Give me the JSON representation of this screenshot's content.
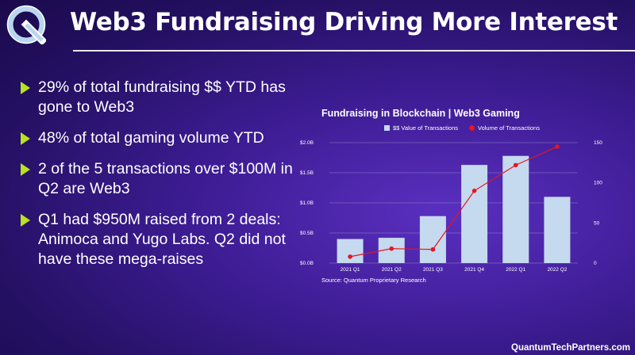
{
  "slide": {
    "title": "Web3 Fundraising Driving More Interest",
    "footer": "QuantumTechPartners.com",
    "bullets": [
      "29% of total fundraising $$ YTD has gone to Web3",
      "48% of total gaming volume YTD",
      "2 of the 5 transactions over $100M in Q2 are Web3",
      "Q1 had $950M raised from 2 deals: Animoca and Yugo Labs. Q2 did not have these mega-raises"
    ],
    "colors": {
      "accent": "#b9e21f",
      "bar": "#c5d9ef",
      "line": "#e8141e",
      "background": "#3d1c93"
    },
    "logo_icon": "q-logo-icon"
  },
  "chart_data": {
    "type": "bar",
    "title": "Fundraising in Blockchain | Web3 Gaming",
    "source": "Source: Quantum Proprietary Research",
    "categories": [
      "2021 Q1",
      "2021 Q2",
      "2021 Q3",
      "2021 Q4",
      "2022 Q1",
      "2022 Q2"
    ],
    "series": [
      {
        "name": "$$ Value of Transactions",
        "type": "bar",
        "axis": "left",
        "values": [
          0.4,
          0.42,
          0.78,
          1.63,
          1.78,
          1.1
        ]
      },
      {
        "name": "Volume of Transactions",
        "type": "line",
        "axis": "right",
        "values": [
          8,
          18,
          17,
          90,
          122,
          145
        ]
      }
    ],
    "y_left": {
      "ticks": [
        "$0.0B",
        "$0.5B",
        "$1.0B",
        "$1.5B",
        "$2.0B"
      ],
      "range": [
        0,
        2.0
      ]
    },
    "y_right": {
      "ticks": [
        "0",
        "50",
        "100",
        "150"
      ],
      "range": [
        0,
        150
      ]
    },
    "grid": true,
    "legend_position": "top"
  }
}
